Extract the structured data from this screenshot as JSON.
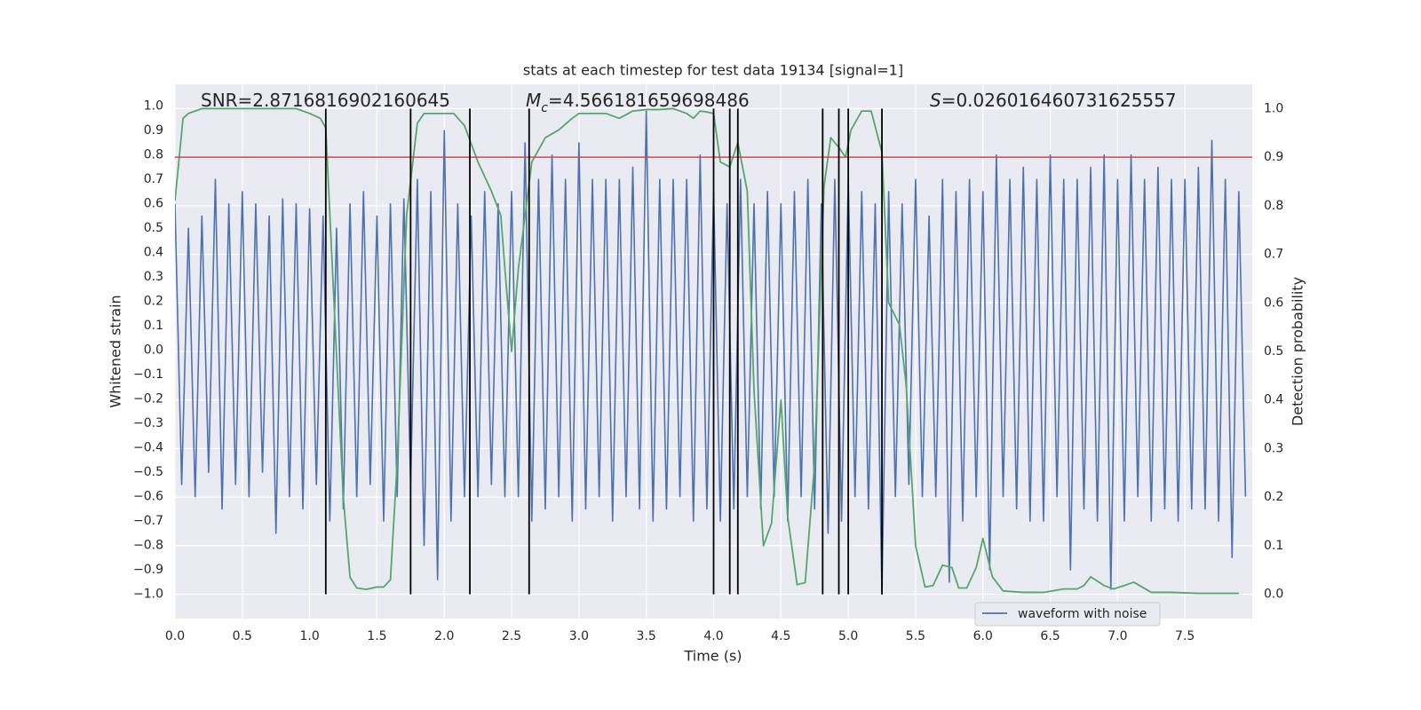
{
  "chart_data": {
    "type": "line",
    "title": "stats at each timestep for test data 19134 [signal=1]",
    "xlabel": "Time (s)",
    "ylabel": "Whitened strain",
    "y2label": "Detection probability",
    "annotations": [
      {
        "text": "SNR=2.8716816902160645"
      },
      {
        "symbol": "M",
        "subscript": "c",
        "text": "=4.566181659698486"
      },
      {
        "symbol": "S",
        "text": "=0.026016460731625557"
      }
    ],
    "xlim": [
      0,
      8.0
    ],
    "ylim": [
      -1.1,
      1.09
    ],
    "y2lim": [
      -0.05,
      1.05
    ],
    "xticks": [
      {
        "value": 0,
        "label": "0.0"
      },
      {
        "value": 0.5,
        "label": "0.5"
      },
      {
        "value": 1,
        "label": "1.0"
      },
      {
        "value": 1.5,
        "label": "1.5"
      },
      {
        "value": 2,
        "label": "2.0"
      },
      {
        "value": 2.5,
        "label": "2.5"
      },
      {
        "value": 3,
        "label": "3.0"
      },
      {
        "value": 3.5,
        "label": "3.5"
      },
      {
        "value": 4,
        "label": "4.0"
      },
      {
        "value": 4.5,
        "label": "4.5"
      },
      {
        "value": 5,
        "label": "5.0"
      },
      {
        "value": 5.5,
        "label": "5.5"
      },
      {
        "value": 6,
        "label": "6.0"
      },
      {
        "value": 6.5,
        "label": "6.5"
      },
      {
        "value": 7,
        "label": "7.0"
      },
      {
        "value": 7.5,
        "label": "7.5"
      }
    ],
    "yticks": [
      {
        "value": -1,
        "label": "−1.0"
      },
      {
        "value": -0.9,
        "label": "−0.9"
      },
      {
        "value": -0.8,
        "label": "−0.8"
      },
      {
        "value": -0.7,
        "label": "−0.7"
      },
      {
        "value": -0.6,
        "label": "−0.6"
      },
      {
        "value": -0.5,
        "label": "−0.5"
      },
      {
        "value": -0.4,
        "label": "−0.4"
      },
      {
        "value": -0.3,
        "label": "−0.3"
      },
      {
        "value": -0.2,
        "label": "−0.2"
      },
      {
        "value": -0.1,
        "label": "−0.1"
      },
      {
        "value": 0,
        "label": "0.0"
      },
      {
        "value": 0.1,
        "label": "0.1"
      },
      {
        "value": 0.2,
        "label": "0.2"
      },
      {
        "value": 0.3,
        "label": "0.3"
      },
      {
        "value": 0.4,
        "label": "0.4"
      },
      {
        "value": 0.5,
        "label": "0.5"
      },
      {
        "value": 0.6,
        "label": "0.6"
      },
      {
        "value": 0.7,
        "label": "0.7"
      },
      {
        "value": 0.8,
        "label": "0.8"
      },
      {
        "value": 0.9,
        "label": "0.9"
      },
      {
        "value": 1,
        "label": "1.0"
      }
    ],
    "y2ticks": [
      {
        "value": 0,
        "label": "0.0"
      },
      {
        "value": 0.1,
        "label": "0.1"
      },
      {
        "value": 0.2,
        "label": "0.2"
      },
      {
        "value": 0.3,
        "label": "0.3"
      },
      {
        "value": 0.4,
        "label": "0.4"
      },
      {
        "value": 0.5,
        "label": "0.5"
      },
      {
        "value": 0.6,
        "label": "0.6"
      },
      {
        "value": 0.7,
        "label": "0.7"
      },
      {
        "value": 0.8,
        "label": "0.8"
      },
      {
        "value": 0.9,
        "label": "0.9"
      },
      {
        "value": 1,
        "label": "1.0"
      }
    ],
    "grid": true,
    "series": [
      {
        "name": "waveform with noise",
        "color": "#4c72b0",
        "x": [
          0,
          0.05,
          0.1,
          0.15,
          0.2,
          0.25,
          0.3,
          0.35,
          0.4,
          0.45,
          0.5,
          0.55,
          0.6,
          0.65,
          0.7,
          0.75,
          0.8,
          0.85,
          0.9,
          0.95,
          1.0,
          1.05,
          1.1,
          1.15,
          1.2,
          1.25,
          1.3,
          1.35,
          1.4,
          1.45,
          1.5,
          1.55,
          1.6,
          1.65,
          1.7,
          1.75,
          1.8,
          1.85,
          1.9,
          1.95,
          2.0,
          2.05,
          2.1,
          2.15,
          2.2,
          2.25,
          2.3,
          2.35,
          2.4,
          2.45,
          2.5,
          2.55,
          2.6,
          2.65,
          2.7,
          2.75,
          2.8,
          2.85,
          2.9,
          2.95,
          3.0,
          3.05,
          3.1,
          3.15,
          3.2,
          3.25,
          3.3,
          3.35,
          3.4,
          3.45,
          3.5,
          3.55,
          3.6,
          3.65,
          3.7,
          3.75,
          3.8,
          3.85,
          3.9,
          3.95,
          4.0,
          4.05,
          4.1,
          4.15,
          4.2,
          4.25,
          4.3,
          4.35,
          4.4,
          4.45,
          4.5,
          4.55,
          4.6,
          4.65,
          4.7,
          4.75,
          4.8,
          4.85,
          4.9,
          4.95,
          5.0,
          5.05,
          5.1,
          5.15,
          5.2,
          5.25,
          5.3,
          5.35,
          5.4,
          5.45,
          5.5,
          5.55,
          5.6,
          5.65,
          5.7,
          5.75,
          5.8,
          5.85,
          5.9,
          5.95,
          6.0,
          6.05,
          6.1,
          6.15,
          6.2,
          6.25,
          6.3,
          6.35,
          6.4,
          6.45,
          6.5,
          6.55,
          6.6,
          6.65,
          6.7,
          6.75,
          6.8,
          6.85,
          6.9,
          6.95,
          7.0,
          7.05,
          7.1,
          7.15,
          7.2,
          7.25,
          7.3,
          7.35,
          7.4,
          7.45,
          7.5,
          7.55,
          7.6,
          7.65,
          7.7,
          7.75,
          7.8,
          7.85,
          7.9,
          7.95
        ],
        "values": [
          0.6,
          -0.55,
          0.5,
          -0.6,
          0.55,
          -0.5,
          0.7,
          -0.65,
          0.6,
          -0.55,
          0.65,
          -0.6,
          0.6,
          -0.5,
          0.55,
          -0.75,
          0.62,
          -0.6,
          0.6,
          -0.65,
          0.58,
          -0.55,
          0.55,
          -0.7,
          0.5,
          -0.65,
          0.6,
          -0.6,
          0.65,
          -0.55,
          0.55,
          -0.7,
          0.6,
          -0.6,
          0.62,
          -0.55,
          0.7,
          -0.8,
          0.65,
          -0.94,
          0.9,
          -0.7,
          0.6,
          -0.6,
          0.55,
          -0.6,
          0.65,
          -0.55,
          0.6,
          -0.6,
          0.65,
          -0.6,
          0.85,
          -0.7,
          0.7,
          -0.65,
          0.8,
          -0.6,
          0.7,
          -0.7,
          0.85,
          -0.65,
          0.7,
          -0.6,
          0.7,
          -0.7,
          0.7,
          -0.6,
          0.75,
          -0.65,
          0.98,
          -0.7,
          0.7,
          -0.65,
          0.7,
          -0.6,
          0.7,
          -0.7,
          0.8,
          -0.65,
          0.65,
          -0.7,
          0.6,
          -0.65,
          0.7,
          -0.6,
          0.6,
          -0.65,
          0.65,
          -0.6,
          0.6,
          -0.7,
          0.65,
          -0.6,
          0.7,
          -0.65,
          0.6,
          -0.75,
          0.7,
          -0.7,
          0.7,
          -0.6,
          0.65,
          -0.65,
          0.6,
          -1.0,
          0.65,
          -0.6,
          0.6,
          -0.55,
          0.7,
          -0.6,
          0.55,
          -0.6,
          0.7,
          -0.95,
          0.65,
          -0.7,
          0.7,
          -0.6,
          0.65,
          -0.9,
          0.8,
          -0.6,
          0.7,
          -0.65,
          0.75,
          -0.7,
          0.7,
          -0.7,
          0.8,
          -0.6,
          0.7,
          -0.9,
          0.7,
          -0.65,
          0.75,
          -0.7,
          0.8,
          -0.98,
          0.7,
          -0.7,
          0.8,
          -0.6,
          0.7,
          -0.7,
          0.75,
          -0.65,
          0.7,
          -0.7,
          0.7,
          -0.65,
          0.75,
          -0.65,
          0.86,
          -0.7,
          0.7,
          -0.85,
          0.65,
          -0.6
        ]
      },
      {
        "color": "#55a868",
        "axis": "y2",
        "x": [
          0,
          0.06,
          0.1,
          0.2,
          0.3,
          0.4,
          0.5,
          0.6,
          0.7,
          0.8,
          0.9,
          1.0,
          1.08,
          1.12,
          1.2,
          1.25,
          1.3,
          1.35,
          1.42,
          1.5,
          1.55,
          1.6,
          1.65,
          1.72,
          1.8,
          1.85,
          1.9,
          2.0,
          2.07,
          2.15,
          2.25,
          2.35,
          2.42,
          2.45,
          2.5,
          2.55,
          2.6,
          2.65,
          2.75,
          2.85,
          2.95,
          3.0,
          3.1,
          3.2,
          3.3,
          3.4,
          3.5,
          3.6,
          3.7,
          3.8,
          3.85,
          3.9,
          3.95,
          4.0,
          4.05,
          4.12,
          4.18,
          4.25,
          4.3,
          4.37,
          4.43,
          4.5,
          4.55,
          4.62,
          4.68,
          4.75,
          4.82,
          4.87,
          4.93,
          4.98,
          5.02,
          5.1,
          5.17,
          5.25,
          5.3,
          5.38,
          5.43,
          5.5,
          5.57,
          5.63,
          5.7,
          5.77,
          5.82,
          5.88,
          5.95,
          6.0,
          6.07,
          6.15,
          6.3,
          6.45,
          6.6,
          6.7,
          6.75,
          6.8,
          6.9,
          6.97,
          7.05,
          7.12,
          7.25,
          7.4,
          7.6,
          7.9
        ],
        "values": [
          0.81,
          0.98,
          0.99,
          1.0,
          1.0,
          1.0,
          1.0,
          1.0,
          1.0,
          1.0,
          1.0,
          0.99,
          0.98,
          0.96,
          0.49,
          0.2,
          0.035,
          0.013,
          0.01,
          0.015,
          0.015,
          0.03,
          0.27,
          0.78,
          0.97,
          0.99,
          0.99,
          0.99,
          0.99,
          0.965,
          0.89,
          0.83,
          0.78,
          0.67,
          0.5,
          0.67,
          0.78,
          0.89,
          0.94,
          0.956,
          0.98,
          0.99,
          0.99,
          0.99,
          0.98,
          0.995,
          0.998,
          0.998,
          1.0,
          0.99,
          0.98,
          0.995,
          0.993,
          0.99,
          0.89,
          0.88,
          0.93,
          0.83,
          0.42,
          0.1,
          0.146,
          0.4,
          0.16,
          0.02,
          0.024,
          0.27,
          0.84,
          0.94,
          0.92,
          0.9,
          0.956,
          0.995,
          0.995,
          0.91,
          0.6,
          0.555,
          0.43,
          0.1,
          0.015,
          0.018,
          0.06,
          0.055,
          0.013,
          0.013,
          0.055,
          0.115,
          0.036,
          0.007,
          0.004,
          0.004,
          0.011,
          0.011,
          0.018,
          0.036,
          0.018,
          0.011,
          0.018,
          0.025,
          0.004,
          0.004,
          0.002,
          0.002
        ]
      }
    ],
    "hlines": [
      {
        "value": 0.9,
        "axis": "y2",
        "color": "#c44e52"
      }
    ],
    "vlines": {
      "color": "#000000",
      "x": [
        1.12,
        1.75,
        2.19,
        2.63,
        4.0,
        4.12,
        4.18,
        4.81,
        4.93,
        5.0,
        5.25
      ]
    }
  }
}
